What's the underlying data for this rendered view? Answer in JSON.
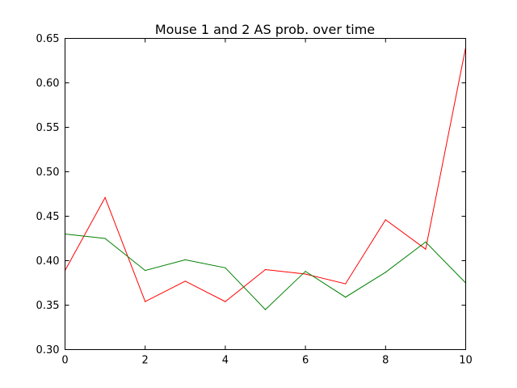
{
  "chart_data": {
    "type": "line",
    "title": "Mouse 1 and 2 AS prob. over time",
    "xlabel": "",
    "ylabel": "",
    "xlim": [
      0,
      10
    ],
    "ylim": [
      0.3,
      0.65
    ],
    "xticks": [
      "0",
      "2",
      "4",
      "6",
      "8",
      "10"
    ],
    "yticks": [
      "0.30",
      "0.35",
      "0.40",
      "0.45",
      "0.50",
      "0.55",
      "0.60",
      "0.65"
    ],
    "grid": false,
    "x": [
      0,
      1,
      2,
      3,
      4,
      5,
      6,
      7,
      8,
      9,
      10
    ],
    "series": [
      {
        "color": "#ff0000",
        "values": [
          0.389,
          0.471,
          0.354,
          0.377,
          0.354,
          0.39,
          0.385,
          0.374,
          0.446,
          0.413,
          0.64
        ]
      },
      {
        "color": "#008000",
        "values": [
          0.43,
          0.425,
          0.389,
          0.401,
          0.392,
          0.345,
          0.388,
          0.359,
          0.387,
          0.421,
          0.375
        ]
      }
    ]
  }
}
